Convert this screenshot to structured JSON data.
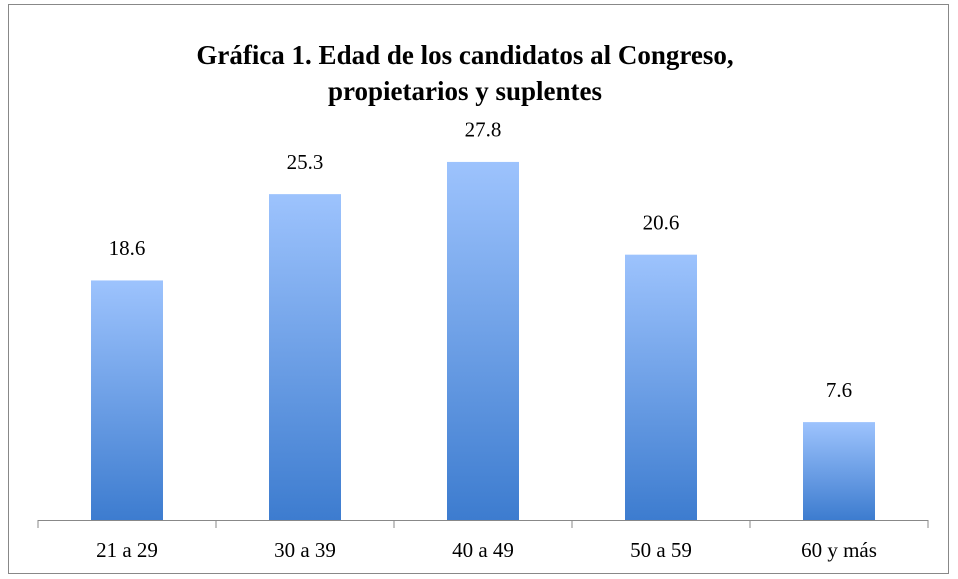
{
  "chart_data": {
    "type": "bar",
    "title": [
      "Gráfica 1. Edad de los candidatos al Congreso,",
      "propietarios y suplentes"
    ],
    "categories": [
      "21 a 29",
      "30 a 39",
      "40 a 49",
      "50 a 59",
      "60 y más"
    ],
    "values": [
      18.6,
      25.3,
      27.8,
      20.6,
      7.6
    ],
    "color": "#4f8ad8"
  }
}
